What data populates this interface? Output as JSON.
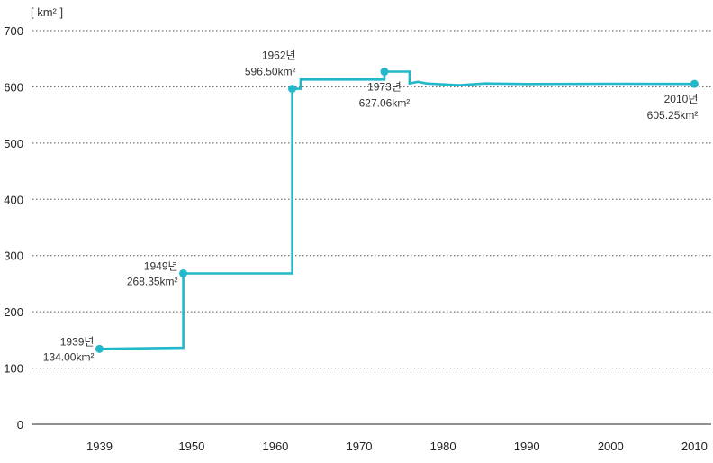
{
  "chart_data": {
    "type": "line",
    "unit_label": "[ km² ]",
    "ylim": [
      0,
      700
    ],
    "yticks": [
      0,
      100,
      200,
      300,
      400,
      500,
      600,
      700
    ],
    "xlim": [
      1931,
      2012
    ],
    "xticks": [
      1939,
      1950,
      1960,
      1970,
      1980,
      1990,
      2000,
      2010
    ],
    "grid": true,
    "line_color": "#22b7c9",
    "series": [
      {
        "name": "",
        "step": true,
        "points": [
          [
            1939,
            134.0
          ],
          [
            1949,
            136.0
          ],
          [
            1949,
            268.35
          ],
          [
            1962,
            268.35
          ],
          [
            1962,
            596.5
          ],
          [
            1963,
            596.5
          ],
          [
            1963,
            613.0
          ],
          [
            1973,
            613.0
          ],
          [
            1973,
            627.06
          ],
          [
            1976,
            627.06
          ],
          [
            1976,
            606.0
          ],
          [
            1977,
            609.0
          ],
          [
            1978,
            606.0
          ],
          [
            1982,
            603.0
          ],
          [
            1985,
            606.0
          ],
          [
            1990,
            605.0
          ],
          [
            2000,
            605.5
          ],
          [
            2010,
            605.25
          ]
        ]
      }
    ],
    "markers": [
      {
        "x": 1939,
        "y": 134.0,
        "year_label": "1939년",
        "value_label": "134.00km²",
        "align": "right",
        "pos": "left"
      },
      {
        "x": 1949,
        "y": 268.35,
        "year_label": "1949년",
        "value_label": "268.35km²",
        "align": "right",
        "pos": "left"
      },
      {
        "x": 1962,
        "y": 596.5,
        "year_label": "1962년",
        "value_label": "596.50km²",
        "align": "right",
        "pos": "above"
      },
      {
        "x": 1973,
        "y": 627.06,
        "year_label": "1973년",
        "value_label": "627.06km²",
        "align": "middle",
        "pos": "below"
      },
      {
        "x": 2010,
        "y": 605.25,
        "year_label": "2010년",
        "value_label": "605.25km²",
        "align": "right",
        "pos": "below"
      }
    ]
  }
}
